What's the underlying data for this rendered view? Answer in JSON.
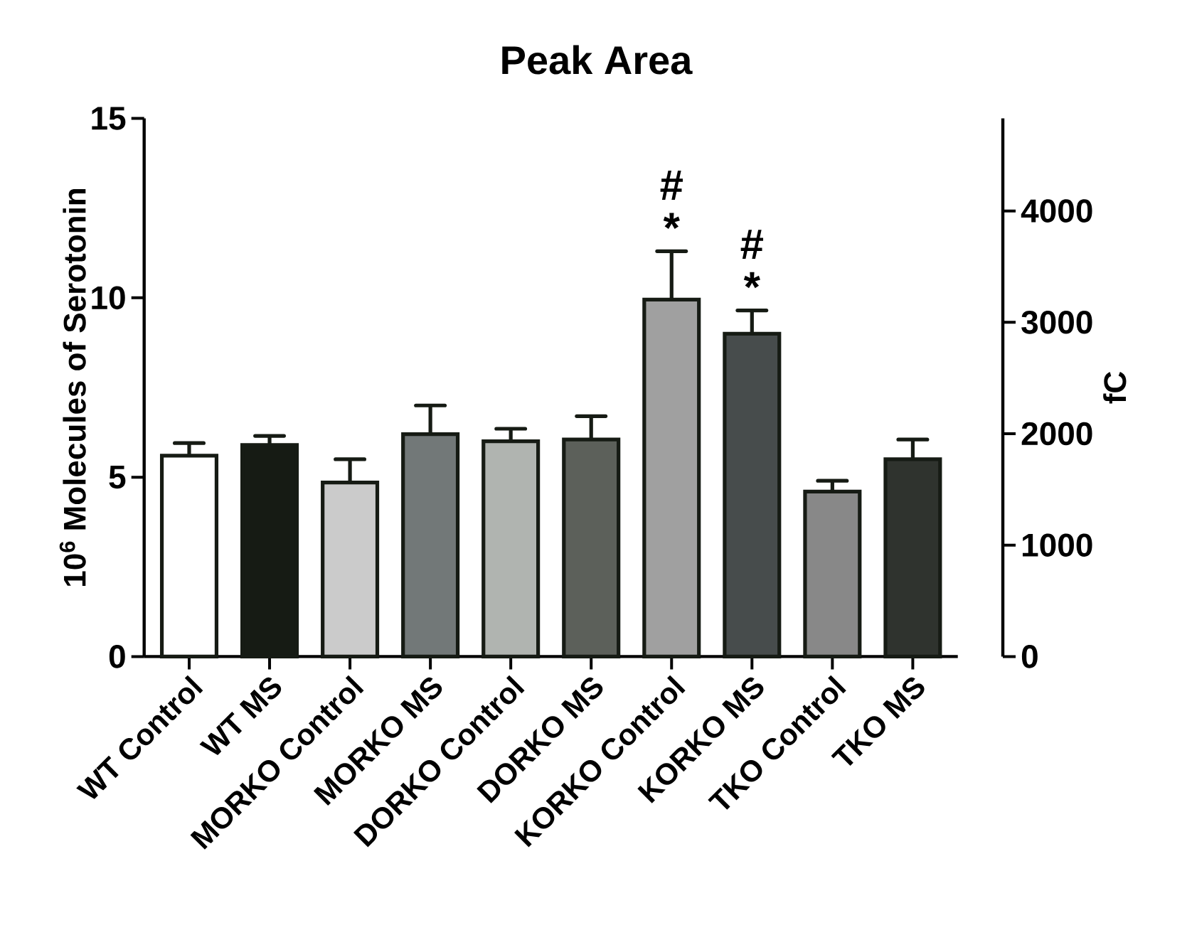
{
  "chart_data": {
    "type": "bar",
    "title": "Peak Area",
    "ylabel": "10$^{6}$ Molecules of Serotonin",
    "y2label": "fC",
    "categories": [
      "WT Control",
      "WT MS",
      "MORKO Control",
      "MORKO MS",
      "DORKO Control",
      "DORKO MS",
      "KORKO Control",
      "KORKO MS",
      "TKO Control",
      "TKO MS"
    ],
    "values": [
      5.6,
      5.9,
      4.85,
      6.2,
      6.0,
      6.05,
      9.95,
      9.0,
      4.6,
      5.5
    ],
    "errors": [
      [
        5.6,
        5.95
      ],
      [
        5.9,
        6.15
      ],
      [
        4.85,
        5.5
      ],
      [
        6.2,
        7.0
      ],
      [
        6.0,
        6.35
      ],
      [
        6.05,
        6.7
      ],
      [
        9.95,
        11.3
      ],
      [
        9.0,
        9.65
      ],
      [
        4.6,
        4.9
      ],
      [
        5.5,
        6.05
      ]
    ],
    "colors": [
      "#ffffff",
      "#161b14",
      "#cbcbcb",
      "#727878",
      "#b0b4b0",
      "#5c605a",
      "#a0a0a0",
      "#474c4c",
      "#888888",
      "#2f332e"
    ],
    "ylim": [
      0,
      15
    ],
    "yticks": [
      0,
      5,
      10,
      15
    ],
    "y2lim": [
      0,
      4830
    ],
    "y2ticks": [
      0,
      1000,
      2000,
      3000,
      4000
    ],
    "annotations": [
      {
        "text": "*",
        "x": "KORKO Control",
        "y": 11.3
      },
      {
        "text": "#",
        "x": "KORKO Control",
        "y": 11.3
      },
      {
        "text": "*",
        "x": "KORKO MS",
        "y": 9.65
      },
      {
        "text": "#",
        "x": "KORKO MS",
        "y": 9.65
      }
    ],
    "grid": false
  }
}
